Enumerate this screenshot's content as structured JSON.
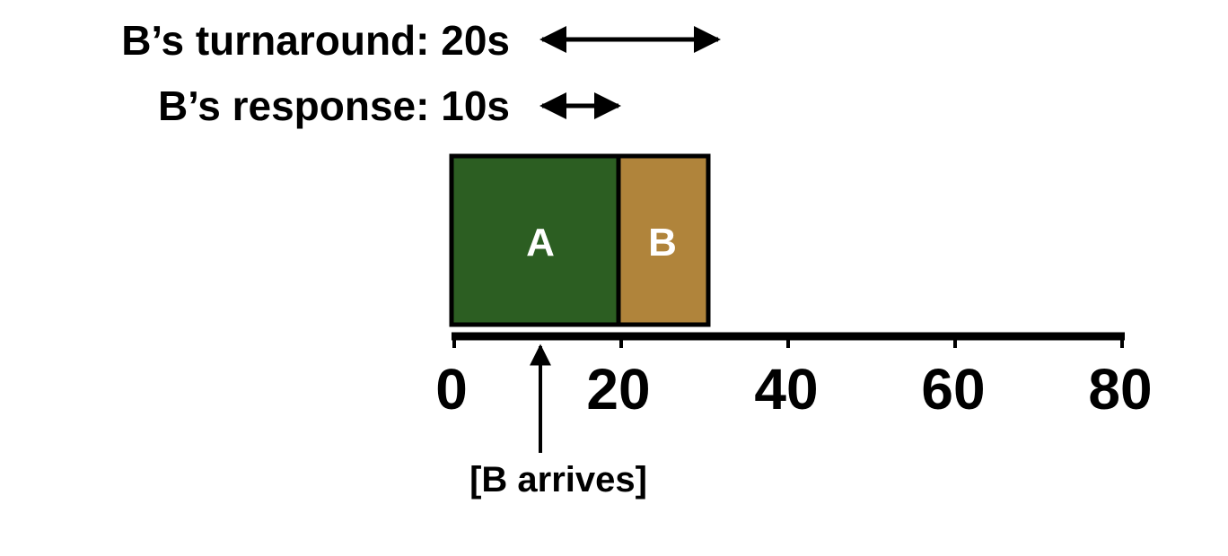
{
  "turnaround": {
    "label": "B’s turnaround: 20s",
    "start": 10,
    "end": 30
  },
  "response": {
    "label": "B’s response: 10s",
    "start": 10,
    "end": 20
  },
  "jobs": [
    {
      "name": "A",
      "start": 0,
      "end": 20,
      "color": "#2c5e22"
    },
    {
      "name": "B",
      "start": 20,
      "end": 30,
      "color": "#b0843b"
    }
  ],
  "axis": {
    "min": 0,
    "max": 80,
    "ticks": [
      "0",
      "20",
      "40",
      "60",
      "80"
    ]
  },
  "arrival": {
    "label": "[B arrives]",
    "time": 10
  }
}
